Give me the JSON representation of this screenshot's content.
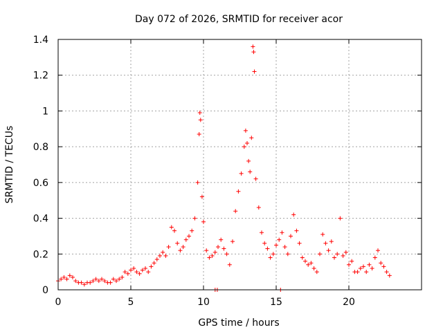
{
  "chart_data": {
    "type": "scatter",
    "title": "Day 072 of 2026, SRMTID for receiver acor",
    "xlabel": "GPS time / hours",
    "ylabel": "SRMTID / TECUs",
    "xlim": [
      0,
      25
    ],
    "ylim": [
      0,
      1.4
    ],
    "xticks": [
      "0",
      "5",
      "10",
      "15",
      "20"
    ],
    "yticks": [
      "0",
      "0.2",
      "0.4",
      "0.6",
      "0.8",
      "1",
      "1.2",
      "1.4"
    ],
    "grid": true,
    "marker": "+",
    "color": "#ff0000",
    "series": [
      {
        "name": "SRMTID",
        "x": [
          0.0,
          0.2,
          0.4,
          0.6,
          0.8,
          1.0,
          1.2,
          1.4,
          1.6,
          1.8,
          2.0,
          2.2,
          2.4,
          2.6,
          2.8,
          3.0,
          3.2,
          3.4,
          3.6,
          3.8,
          4.0,
          4.2,
          4.4,
          4.6,
          4.8,
          5.0,
          5.2,
          5.4,
          5.6,
          5.8,
          6.0,
          6.2,
          6.4,
          6.6,
          6.8,
          7.0,
          7.2,
          7.4,
          7.6,
          7.8,
          8.0,
          8.2,
          8.4,
          8.6,
          8.8,
          9.0,
          9.2,
          9.4,
          9.6,
          9.7,
          9.75,
          9.8,
          9.9,
          10.0,
          10.2,
          10.4,
          10.6,
          10.8,
          11.0,
          11.2,
          11.4,
          11.6,
          11.8,
          12.0,
          12.2,
          12.4,
          12.6,
          12.8,
          12.9,
          13.0,
          13.1,
          13.2,
          13.3,
          13.4,
          13.45,
          13.5,
          13.6,
          13.8,
          14.0,
          14.2,
          14.4,
          14.6,
          14.8,
          15.0,
          15.2,
          15.4,
          15.6,
          15.8,
          16.0,
          16.2,
          16.4,
          16.6,
          16.8,
          17.0,
          17.2,
          17.4,
          17.6,
          17.8,
          18.0,
          18.2,
          18.4,
          18.6,
          18.8,
          19.0,
          19.2,
          19.4,
          19.6,
          19.8,
          20.0,
          20.2,
          20.4,
          20.6,
          20.8,
          21.0,
          21.2,
          21.4,
          21.6,
          21.8,
          22.0,
          22.2,
          22.4,
          22.6,
          22.8,
          10.8,
          10.95,
          15.3
        ],
        "y": [
          0.05,
          0.06,
          0.07,
          0.06,
          0.08,
          0.07,
          0.05,
          0.04,
          0.04,
          0.03,
          0.04,
          0.04,
          0.05,
          0.06,
          0.05,
          0.06,
          0.05,
          0.04,
          0.04,
          0.06,
          0.05,
          0.06,
          0.07,
          0.1,
          0.09,
          0.11,
          0.12,
          0.1,
          0.09,
          0.11,
          0.12,
          0.1,
          0.13,
          0.15,
          0.17,
          0.19,
          0.21,
          0.19,
          0.24,
          0.35,
          0.33,
          0.26,
          0.22,
          0.24,
          0.28,
          0.3,
          0.33,
          0.4,
          0.6,
          0.87,
          0.99,
          0.95,
          0.52,
          0.38,
          0.22,
          0.18,
          0.19,
          0.21,
          0.24,
          0.28,
          0.23,
          0.2,
          0.14,
          0.27,
          0.44,
          0.55,
          0.65,
          0.8,
          0.89,
          0.82,
          0.72,
          0.66,
          0.85,
          1.36,
          1.33,
          1.22,
          0.62,
          0.46,
          0.32,
          0.26,
          0.23,
          0.18,
          0.2,
          0.25,
          0.28,
          0.32,
          0.24,
          0.2,
          0.3,
          0.42,
          0.33,
          0.26,
          0.18,
          0.16,
          0.14,
          0.15,
          0.12,
          0.1,
          0.2,
          0.31,
          0.26,
          0.22,
          0.27,
          0.18,
          0.2,
          0.4,
          0.19,
          0.21,
          0.14,
          0.16,
          0.1,
          0.1,
          0.12,
          0.13,
          0.1,
          0.14,
          0.12,
          0.18,
          0.22,
          0.15,
          0.13,
          0.1,
          0.08,
          0.0,
          0.0,
          0.0
        ]
      }
    ]
  }
}
